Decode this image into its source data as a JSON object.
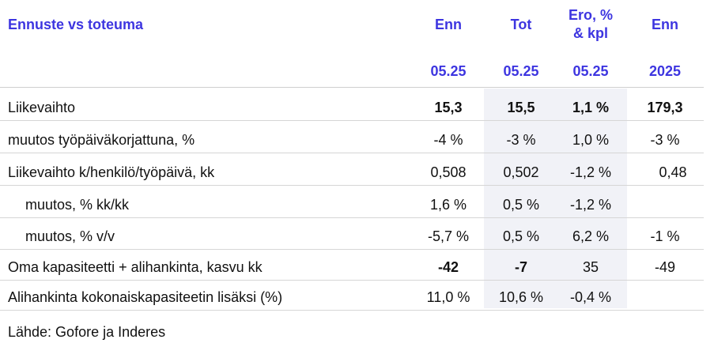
{
  "header": {
    "title": "Ennuste vs toteuma",
    "columns": [
      {
        "line1": "Enn",
        "line2": "",
        "period": "05.25"
      },
      {
        "line1": "Tot",
        "line2": "",
        "period": "05.25"
      },
      {
        "line1": "Ero, %",
        "line2": "& kpl",
        "period": "05.25"
      },
      {
        "line1": "Enn",
        "line2": "",
        "period": "2025"
      }
    ]
  },
  "rows": [
    {
      "label": "Liikevaihto",
      "values": [
        "15,3",
        "15,5",
        "1,1 %",
        "179,3"
      ],
      "bold": true
    },
    {
      "label": "muutos työpäiväkorjattuna, %",
      "values": [
        "-4 %",
        "-3 %",
        "1,0 %",
        "-3 %"
      ]
    },
    {
      "label": "Liikevaihto k/henkilö/työpäivä, kk",
      "values": [
        "0,508",
        "0,502",
        "-1,2 %",
        "0,48"
      ]
    },
    {
      "label": "muutos, % kk/kk",
      "values": [
        "1,6 %",
        "0,5 %",
        "-1,2 %",
        ""
      ]
    },
    {
      "label": "muutos, % v/v",
      "values": [
        "-5,7 %",
        "0,5 %",
        "6,2 %",
        "-1 %"
      ]
    },
    {
      "label": "Oma kapasiteetti + alihankinta, kasvu kk",
      "values": [
        "-42",
        "-7",
        "35",
        "-49"
      ]
    },
    {
      "label": "Alihankinta kokonaiskapasiteetin lisäksi (%)",
      "values": [
        "11,0 %",
        "10,6 %",
        "-0,4 %",
        ""
      ]
    }
  ],
  "source": "Lähde: Gofore ja Inderes",
  "colors": {
    "accent": "#3d35e0",
    "shade": "#f1f2f7"
  }
}
